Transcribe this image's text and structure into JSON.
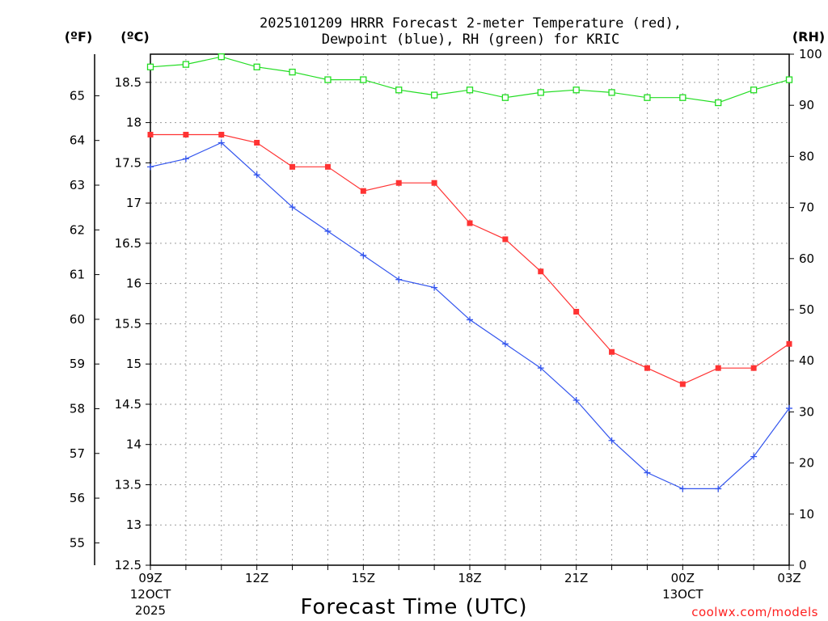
{
  "chart_data": {
    "type": "line",
    "title_line1": "2025101209 HRRR Forecast 2-meter Temperature (red),",
    "title_line2": "Dewpoint (blue), RH (green) for KRIC",
    "xlabel": "Forecast Time (UTC)",
    "credit": "coolwx.com/models",
    "units": {
      "fahrenheit": "(ºF)",
      "celsius": "(ºC)",
      "rh": "(RH)"
    },
    "x_hours": [
      9,
      10,
      11,
      12,
      13,
      14,
      15,
      16,
      17,
      18,
      19,
      20,
      21,
      22,
      23,
      24,
      25,
      26,
      27
    ],
    "x_ticks": [
      {
        "hour": 9,
        "label": "09Z",
        "sub1": "12OCT",
        "sub2": "2025"
      },
      {
        "hour": 12,
        "label": "12Z",
        "sub1": "",
        "sub2": ""
      },
      {
        "hour": 15,
        "label": "15Z",
        "sub1": "",
        "sub2": ""
      },
      {
        "hour": 18,
        "label": "18Z",
        "sub1": "",
        "sub2": ""
      },
      {
        "hour": 21,
        "label": "21Z",
        "sub1": "",
        "sub2": ""
      },
      {
        "hour": 24,
        "label": "00Z",
        "sub1": "13OCT",
        "sub2": ""
      },
      {
        "hour": 27,
        "label": "03Z",
        "sub1": "",
        "sub2": ""
      }
    ],
    "celsius_axis": {
      "min": 12.5,
      "max": 18.85,
      "ticks": [
        "12.5",
        "13",
        "13.5",
        "14",
        "14.5",
        "15",
        "15.5",
        "16",
        "16.5",
        "17",
        "17.5",
        "18",
        "18.5"
      ]
    },
    "fahrenheit_axis": {
      "ticks": [
        "55",
        "56",
        "57",
        "58",
        "59",
        "60",
        "61",
        "62",
        "63",
        "64",
        "65"
      ]
    },
    "rh_axis": {
      "min": 0,
      "max": 100,
      "ticks": [
        "0",
        "10",
        "20",
        "30",
        "40",
        "50",
        "60",
        "70",
        "80",
        "90",
        "100"
      ]
    },
    "series": [
      {
        "name": "Temperature",
        "unit": "C",
        "color": "#ff3333",
        "marker": "filled-square",
        "values": [
          17.85,
          17.85,
          17.85,
          17.75,
          17.45,
          17.45,
          17.15,
          17.25,
          17.25,
          16.75,
          16.55,
          16.15,
          15.65,
          15.15,
          14.95,
          14.75,
          14.95,
          14.95,
          15.25
        ]
      },
      {
        "name": "Dewpoint",
        "unit": "C",
        "color": "#3355ee",
        "marker": "plus",
        "values": [
          17.45,
          17.55,
          17.75,
          17.35,
          16.95,
          16.65,
          16.35,
          16.05,
          15.95,
          15.55,
          15.25,
          14.95,
          14.55,
          14.05,
          13.65,
          13.45,
          13.45,
          13.85,
          14.45
        ]
      },
      {
        "name": "RH",
        "unit": "%",
        "color": "#22dd22",
        "marker": "open-square",
        "values": [
          97.5,
          98,
          99.5,
          97.5,
          96.5,
          95,
          95,
          93,
          92,
          93,
          91.5,
          92.5,
          93,
          92.5,
          91.5,
          91.5,
          90.5,
          93,
          95
        ]
      }
    ],
    "grid": true
  }
}
